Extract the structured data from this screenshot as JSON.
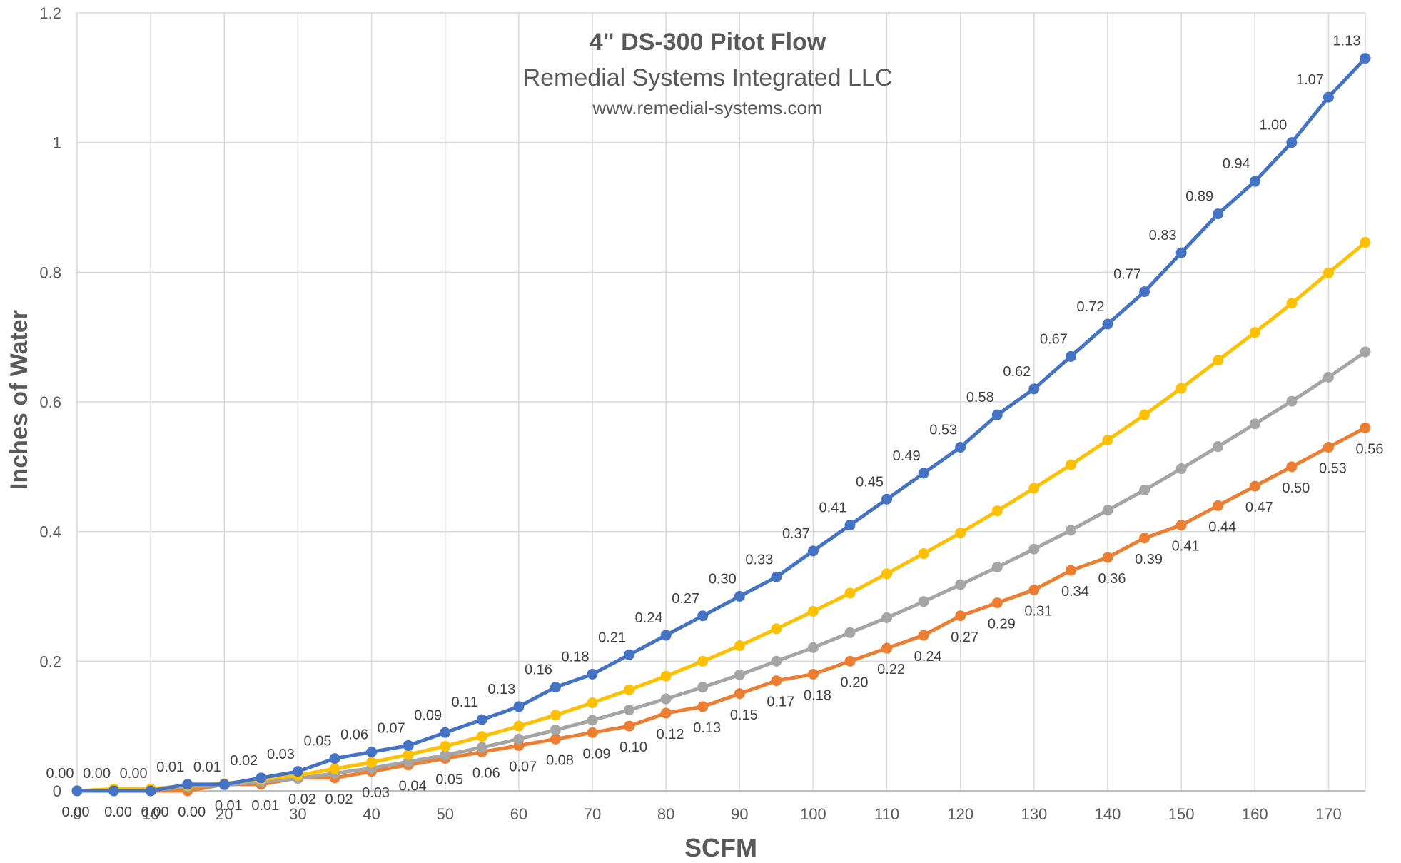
{
  "chart_data": {
    "type": "line",
    "title": "4\" DS-300 Pitot Flow",
    "subtitle": "Remedial Systems Integrated LLC",
    "subtitle2": "www.remedial-systems.com",
    "xlabel": "SCFM",
    "ylabel": "Inches of Water",
    "xlim": [
      0,
      175
    ],
    "ylim": [
      0,
      1.2
    ],
    "x_ticks": [
      "0",
      "10",
      "20",
      "30",
      "40",
      "50",
      "60",
      "70",
      "80",
      "90",
      "100",
      "110",
      "120",
      "130",
      "140",
      "150",
      "160",
      "170"
    ],
    "y_ticks": [
      "0",
      "0.2",
      "0.4",
      "0.6",
      "0.8",
      "1",
      "1.2"
    ],
    "grid": true,
    "x": [
      0,
      5,
      10,
      15,
      20,
      25,
      30,
      35,
      40,
      45,
      50,
      55,
      60,
      65,
      70,
      75,
      80,
      85,
      90,
      95,
      100,
      105,
      110,
      115,
      120,
      125,
      130,
      135,
      140,
      145,
      150,
      155,
      160,
      165,
      170,
      175
    ],
    "series": [
      {
        "color": "#4472C4",
        "labeled": true,
        "values": [
          0.0,
          0.0,
          0.0,
          0.01,
          0.01,
          0.02,
          0.03,
          0.05,
          0.06,
          0.07,
          0.09,
          0.11,
          0.13,
          0.16,
          0.18,
          0.21,
          0.24,
          0.27,
          0.3,
          0.33,
          0.37,
          0.41,
          0.45,
          0.49,
          0.53,
          0.58,
          0.62,
          0.67,
          0.72,
          0.77,
          0.83,
          0.89,
          0.94,
          1.0,
          1.07,
          1.13
        ],
        "labels": [
          "0.00",
          "0.00",
          "0.00",
          "0.01",
          "0.01",
          "0.02",
          "0.03",
          "0.05",
          "0.06",
          "0.07",
          "0.09",
          "0.11",
          "0.13",
          "0.16",
          "0.18",
          "0.21",
          "0.24",
          "0.27",
          "0.30",
          "0.33",
          "0.37",
          "0.41",
          "0.45",
          "0.49",
          "0.53",
          "0.58",
          "0.62",
          "0.67",
          "0.72",
          "0.77",
          "0.83",
          "0.89",
          "0.94",
          "1.00",
          "1.07",
          "1.13"
        ]
      },
      {
        "color": "#FFC000",
        "labeled": false,
        "values": [
          0.0,
          0.003,
          0.003,
          0.008,
          0.011,
          0.018,
          0.024,
          0.034,
          0.044,
          0.056,
          0.069,
          0.084,
          0.1,
          0.117,
          0.136,
          0.156,
          0.177,
          0.2,
          0.224,
          0.25,
          0.277,
          0.305,
          0.335,
          0.366,
          0.398,
          0.432,
          0.467,
          0.503,
          0.541,
          0.58,
          0.621,
          0.664,
          0.707,
          0.752,
          0.799,
          0.846
        ]
      },
      {
        "color": "#A5A5A5",
        "labeled": false,
        "values": [
          0.0,
          0.002,
          0.002,
          0.006,
          0.009,
          0.014,
          0.019,
          0.027,
          0.035,
          0.045,
          0.055,
          0.067,
          0.08,
          0.094,
          0.109,
          0.125,
          0.142,
          0.16,
          0.179,
          0.2,
          0.221,
          0.244,
          0.267,
          0.292,
          0.318,
          0.345,
          0.373,
          0.402,
          0.433,
          0.464,
          0.497,
          0.531,
          0.566,
          0.601,
          0.638,
          0.677
        ]
      },
      {
        "color": "#ED7D31",
        "labeled": true,
        "values": [
          0.0,
          0.0,
          0.0,
          0.0,
          0.01,
          0.01,
          0.02,
          0.02,
          0.03,
          0.04,
          0.05,
          0.06,
          0.07,
          0.08,
          0.09,
          0.1,
          0.12,
          0.13,
          0.15,
          0.17,
          0.18,
          0.2,
          0.22,
          0.24,
          0.27,
          0.29,
          0.31,
          0.34,
          0.36,
          0.39,
          0.41,
          0.44,
          0.47,
          0.5,
          0.53,
          0.56
        ],
        "labels": [
          "0.00",
          "0.00",
          "0.00",
          "0.00",
          "0.01",
          "0.01",
          "0.02",
          "0.02",
          "0.03",
          "0.04",
          "0.05",
          "0.06",
          "0.07",
          "0.08",
          "0.09",
          "0.10",
          "0.12",
          "0.13",
          "0.15",
          "0.17",
          "0.18",
          "0.20",
          "0.22",
          "0.24",
          "0.27",
          "0.29",
          "0.31",
          "0.34",
          "0.36",
          "0.39",
          "0.41",
          "0.44",
          "0.47",
          "0.50",
          "0.53",
          "0.56"
        ]
      }
    ]
  }
}
